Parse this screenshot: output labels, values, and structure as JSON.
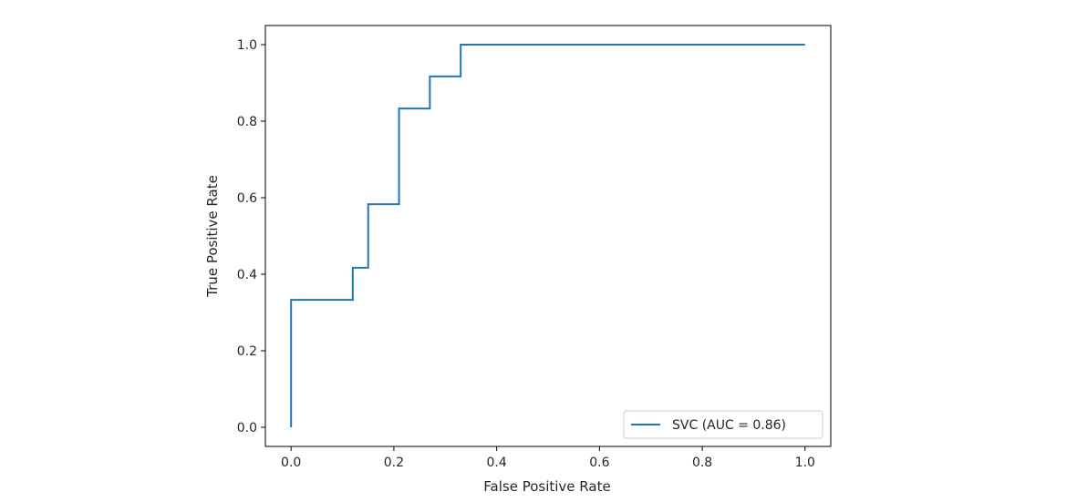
{
  "chart_data": {
    "type": "line",
    "xlabel": "False Positive Rate",
    "ylabel": "True Positive Rate",
    "xlim": [
      -0.05,
      1.05
    ],
    "ylim": [
      -0.05,
      1.05
    ],
    "xticks": [
      "0.0",
      "0.2",
      "0.4",
      "0.6",
      "0.8",
      "1.0"
    ],
    "yticks": [
      "0.0",
      "0.2",
      "0.4",
      "0.6",
      "0.8",
      "1.0"
    ],
    "grid": false,
    "legend_position": "lower-right",
    "series": [
      {
        "name": "SVC (AUC = 0.86)",
        "color": "#1f77b4",
        "x": [
          0.0,
          0.0,
          0.12,
          0.12,
          0.15,
          0.15,
          0.21,
          0.21,
          0.27,
          0.27,
          0.33,
          0.33,
          1.0
        ],
        "y": [
          0.0,
          0.333,
          0.333,
          0.417,
          0.417,
          0.583,
          0.583,
          0.833,
          0.833,
          0.917,
          0.917,
          1.0,
          1.0
        ]
      }
    ]
  }
}
